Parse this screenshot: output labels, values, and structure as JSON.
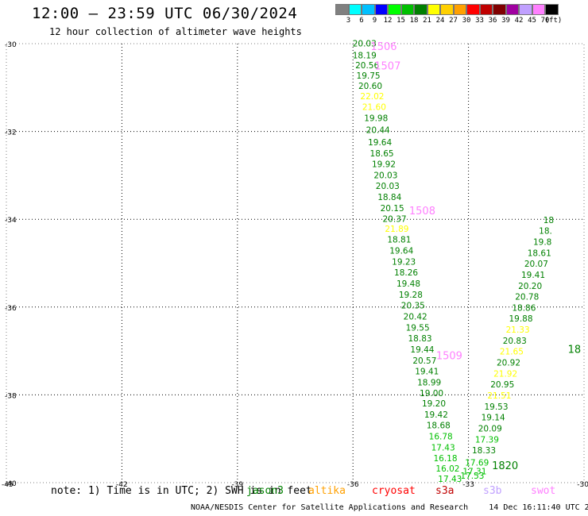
{
  "header": {
    "title": "12:00 – 23:59 UTC 06/30/2024",
    "subtitle": "12 hour collection of altimeter wave heights"
  },
  "legend": {
    "unit": "(ft)",
    "bins": [
      {
        "label": "3",
        "color": "#808080"
      },
      {
        "label": "6",
        "color": "#00ffff"
      },
      {
        "label": "9",
        "color": "#00c0ff"
      },
      {
        "label": "12",
        "color": "#0000ff"
      },
      {
        "label": "15",
        "color": "#00ff00"
      },
      {
        "label": "18",
        "color": "#00c000"
      },
      {
        "label": "21",
        "color": "#008000"
      },
      {
        "label": "24",
        "color": "#ffff00"
      },
      {
        "label": "27",
        "color": "#ffd000"
      },
      {
        "label": "30",
        "color": "#ffa000"
      },
      {
        "label": "33",
        "color": "#ff0000"
      },
      {
        "label": "36",
        "color": "#c00000"
      },
      {
        "label": "39",
        "color": "#800000"
      },
      {
        "label": "42",
        "color": "#a000a0"
      },
      {
        "label": "45",
        "color": "#c0a0ff"
      },
      {
        "label": "70",
        "color": "#ff80ff"
      },
      {
        "label": "",
        "color": "#000000"
      }
    ]
  },
  "axes": {
    "lat_labels": [
      {
        "text": "-30",
        "lat": -30
      },
      {
        "text": "-32",
        "lat": -32
      },
      {
        "text": "-34",
        "lat": -34
      },
      {
        "text": "-36",
        "lat": -36
      },
      {
        "text": "-38",
        "lat": -38
      },
      {
        "text": "-40",
        "lat": -40
      }
    ],
    "lon_labels": [
      {
        "text": "-45",
        "lon": -45
      },
      {
        "text": "-42",
        "lon": -42
      },
      {
        "text": "-39",
        "lon": -39
      },
      {
        "text": "-36",
        "lon": -36
      },
      {
        "text": "-33",
        "lon": -33
      },
      {
        "text": "-30",
        "lon": -30
      }
    ]
  },
  "tracks": [
    {
      "name": "track-west",
      "time_labels": [
        {
          "text": "1506",
          "lon": -35.2,
          "lat": -30.05,
          "color": "#ff80ff"
        },
        {
          "text": "1507",
          "lon": -35.1,
          "lat": -30.5,
          "color": "#ff80ff"
        },
        {
          "text": "1508",
          "lon": -34.2,
          "lat": -33.8,
          "color": "#ff80ff"
        },
        {
          "text": "1509",
          "lon": -33.5,
          "lat": -37.1,
          "color": "#ff80ff"
        }
      ],
      "obs": [
        {
          "v": "20.03",
          "lon": -35.7,
          "lat": -30.0,
          "color": "#008000"
        },
        {
          "v": "18.19",
          "lon": -35.7,
          "lat": -30.27,
          "color": "#008000"
        },
        {
          "v": "20.56",
          "lon": -35.63,
          "lat": -30.5,
          "color": "#008000"
        },
        {
          "v": "19.75",
          "lon": -35.6,
          "lat": -30.73,
          "color": "#008000"
        },
        {
          "v": "20.60",
          "lon": -35.55,
          "lat": -30.97,
          "color": "#008000"
        },
        {
          "v": "22.02",
          "lon": -35.5,
          "lat": -31.2,
          "color": "#ffff00"
        },
        {
          "v": "21.60",
          "lon": -35.45,
          "lat": -31.45,
          "color": "#ffff00"
        },
        {
          "v": "19.98",
          "lon": -35.4,
          "lat": -31.7,
          "color": "#008000"
        },
        {
          "v": "20.44",
          "lon": -35.35,
          "lat": -31.97,
          "color": "#008000"
        },
        {
          "v": "19.64",
          "lon": -35.3,
          "lat": -32.25,
          "color": "#008000"
        },
        {
          "v": "18.65",
          "lon": -35.25,
          "lat": -32.5,
          "color": "#008000"
        },
        {
          "v": "19.92",
          "lon": -35.2,
          "lat": -32.75,
          "color": "#008000"
        },
        {
          "v": "20.03",
          "lon": -35.15,
          "lat": -33.0,
          "color": "#008000"
        },
        {
          "v": "20.03",
          "lon": -35.1,
          "lat": -33.25,
          "color": "#008000"
        },
        {
          "v": "18.84",
          "lon": -35.05,
          "lat": -33.5,
          "color": "#008000"
        },
        {
          "v": "20.15",
          "lon": -34.98,
          "lat": -33.75,
          "color": "#008000"
        },
        {
          "v": "20.37",
          "lon": -34.92,
          "lat": -34.0,
          "color": "#008000"
        },
        {
          "v": "21.89",
          "lon": -34.86,
          "lat": -34.22,
          "color": "#ffff00"
        },
        {
          "v": "18.81",
          "lon": -34.8,
          "lat": -34.47,
          "color": "#008000"
        },
        {
          "v": "19.64",
          "lon": -34.74,
          "lat": -34.72,
          "color": "#008000"
        },
        {
          "v": "19.23",
          "lon": -34.68,
          "lat": -34.97,
          "color": "#008000"
        },
        {
          "v": "18.26",
          "lon": -34.62,
          "lat": -35.22,
          "color": "#008000"
        },
        {
          "v": "19.48",
          "lon": -34.56,
          "lat": -35.47,
          "color": "#008000"
        },
        {
          "v": "19.28",
          "lon": -34.5,
          "lat": -35.72,
          "color": "#008000"
        },
        {
          "v": "20.35",
          "lon": -34.44,
          "lat": -35.97,
          "color": "#008000"
        },
        {
          "v": "20.42",
          "lon": -34.38,
          "lat": -36.22,
          "color": "#008000"
        },
        {
          "v": "19.55",
          "lon": -34.32,
          "lat": -36.47,
          "color": "#008000"
        },
        {
          "v": "18.83",
          "lon": -34.26,
          "lat": -36.72,
          "color": "#008000"
        },
        {
          "v": "19.44",
          "lon": -34.2,
          "lat": -36.97,
          "color": "#008000"
        },
        {
          "v": "20.57",
          "lon": -34.14,
          "lat": -37.22,
          "color": "#008000"
        },
        {
          "v": "19.41",
          "lon": -34.08,
          "lat": -37.47,
          "color": "#008000"
        },
        {
          "v": "18.99",
          "lon": -34.02,
          "lat": -37.72,
          "color": "#008000"
        },
        {
          "v": "19.00",
          "lon": -33.96,
          "lat": -37.97,
          "color": "#008000"
        },
        {
          "v": "19.20",
          "lon": -33.9,
          "lat": -38.2,
          "color": "#008000"
        },
        {
          "v": "19.42",
          "lon": -33.84,
          "lat": -38.45,
          "color": "#008000"
        },
        {
          "v": "18.68",
          "lon": -33.78,
          "lat": -38.7,
          "color": "#008000"
        },
        {
          "v": "16.78",
          "lon": -33.72,
          "lat": -38.95,
          "color": "#00c000"
        },
        {
          "v": "17.43",
          "lon": -33.66,
          "lat": -39.2,
          "color": "#00c000"
        },
        {
          "v": "16.18",
          "lon": -33.6,
          "lat": -39.45,
          "color": "#00c000"
        },
        {
          "v": "16.02",
          "lon": -33.54,
          "lat": -39.68,
          "color": "#00c000"
        },
        {
          "v": "17.43",
          "lon": -33.48,
          "lat": -39.92,
          "color": "#00c000"
        }
      ]
    },
    {
      "name": "track-east",
      "time_labels": [
        {
          "text": "1820",
          "lon": -32.05,
          "lat": -39.6,
          "color": "#008000"
        },
        {
          "text": "18",
          "lon": -30.25,
          "lat": -36.95,
          "color": "#008000"
        }
      ],
      "obs": [
        {
          "v": "17.53",
          "lon": -32.9,
          "lat": -39.85,
          "color": "#00c000"
        },
        {
          "v": "17.31",
          "lon": -32.84,
          "lat": -39.75,
          "color": "#00c000"
        },
        {
          "v": "17.69",
          "lon": -32.78,
          "lat": -39.55,
          "color": "#00c000"
        },
        {
          "v": "18.33",
          "lon": -32.6,
          "lat": -39.27,
          "color": "#008000"
        },
        {
          "v": "17.39",
          "lon": -32.52,
          "lat": -39.02,
          "color": "#00c000"
        },
        {
          "v": "20.09",
          "lon": -32.44,
          "lat": -38.77,
          "color": "#008000"
        },
        {
          "v": "19.14",
          "lon": -32.36,
          "lat": -38.52,
          "color": "#008000"
        },
        {
          "v": "19.53",
          "lon": -32.28,
          "lat": -38.27,
          "color": "#008000"
        },
        {
          "v": "21.51",
          "lon": -32.2,
          "lat": -38.02,
          "color": "#ffff00"
        },
        {
          "v": "20.95",
          "lon": -32.12,
          "lat": -37.77,
          "color": "#008000"
        },
        {
          "v": "21.92",
          "lon": -32.04,
          "lat": -37.52,
          "color": "#ffff00"
        },
        {
          "v": "20.92",
          "lon": -31.96,
          "lat": -37.27,
          "color": "#008000"
        },
        {
          "v": "21.65",
          "lon": -31.88,
          "lat": -37.02,
          "color": "#ffff00"
        },
        {
          "v": "20.83",
          "lon": -31.8,
          "lat": -36.77,
          "color": "#008000"
        },
        {
          "v": "21.33",
          "lon": -31.72,
          "lat": -36.52,
          "color": "#ffff00"
        },
        {
          "v": "19.88",
          "lon": -31.64,
          "lat": -36.27,
          "color": "#008000"
        },
        {
          "v": "18.86",
          "lon": -31.56,
          "lat": -36.02,
          "color": "#008000"
        },
        {
          "v": "20.78",
          "lon": -31.48,
          "lat": -35.77,
          "color": "#008000"
        },
        {
          "v": "20.20",
          "lon": -31.4,
          "lat": -35.52,
          "color": "#008000"
        },
        {
          "v": "19.41",
          "lon": -31.32,
          "lat": -35.27,
          "color": "#008000"
        },
        {
          "v": "20.07",
          "lon": -31.24,
          "lat": -35.02,
          "color": "#008000"
        },
        {
          "v": "18.61",
          "lon": -31.16,
          "lat": -34.77,
          "color": "#008000"
        },
        {
          "v": "19.8",
          "lon": -31.08,
          "lat": -34.52,
          "color": "#008000"
        },
        {
          "v": "18.",
          "lon": -31.0,
          "lat": -34.27,
          "color": "#008000"
        },
        {
          "v": "18",
          "lon": -30.92,
          "lat": -34.02,
          "color": "#008000"
        }
      ]
    }
  ],
  "note": {
    "text": "note: 1) Time is in UTC; 2) SWH is in feet",
    "missions": [
      {
        "label": "jason3",
        "color": "#008000"
      },
      {
        "label": "altika",
        "color": "#ffa000"
      },
      {
        "label": "cryosat",
        "color": "#ff0000"
      },
      {
        "label": "s3a",
        "color": "#c00000"
      },
      {
        "label": "s3b",
        "color": "#c0a0ff"
      },
      {
        "label": "swot",
        "color": "#ff80ff"
      }
    ]
  },
  "footer": {
    "credit": "NOAA/NESDIS Center for Satellite Applications and Research",
    "timestamp": "14 Dec 16:11:40 UTC 2024"
  }
}
